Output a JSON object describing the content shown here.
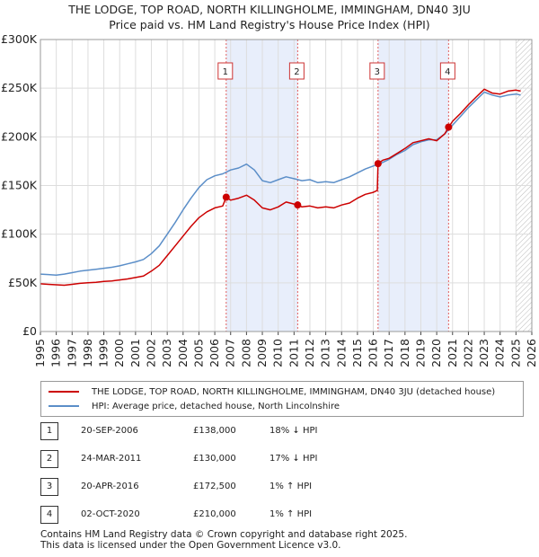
{
  "title_line1": "THE LODGE, TOP ROAD, NORTH KILLINGHOLME, IMMINGHAM, DN40 3JU",
  "title_line2": "Price paid vs. HM Land Registry's House Price Index (HPI)",
  "chart_data": {
    "type": "line",
    "x_range": [
      1995,
      2026
    ],
    "y_range": [
      0,
      300000
    ],
    "y_ticks": [
      {
        "value": 0,
        "label": "£0"
      },
      {
        "value": 50000,
        "label": "£50K"
      },
      {
        "value": 100000,
        "label": "£100K"
      },
      {
        "value": 150000,
        "label": "£150K"
      },
      {
        "value": 200000,
        "label": "£200K"
      },
      {
        "value": 250000,
        "label": "£250K"
      },
      {
        "value": 300000,
        "label": "£300K"
      }
    ],
    "x_ticks": [
      "1995",
      "1996",
      "1997",
      "1998",
      "1999",
      "2000",
      "2001",
      "2002",
      "2003",
      "2004",
      "2005",
      "2006",
      "2007",
      "2008",
      "2009",
      "2010",
      "2011",
      "2012",
      "2013",
      "2014",
      "2015",
      "2016",
      "2017",
      "2018",
      "2019",
      "2020",
      "2021",
      "2022",
      "2023",
      "2024",
      "2025",
      "2026"
    ],
    "future_hatch_from": 2025.0,
    "shaded_periods": [
      [
        2006.72,
        2011.23
      ],
      [
        2016.3,
        2020.75
      ]
    ],
    "series": [
      {
        "name": "THE LODGE, TOP ROAD, NORTH KILLINGHOLME, IMMINGHAM, DN40 3JU (detached house)",
        "color": "#cc0000",
        "points": [
          [
            1995.0,
            49000
          ],
          [
            1995.5,
            48500
          ],
          [
            1996.0,
            48000
          ],
          [
            1996.5,
            47500
          ],
          [
            1997.0,
            48500
          ],
          [
            1997.5,
            49500
          ],
          [
            1998.0,
            50000
          ],
          [
            1998.5,
            50500
          ],
          [
            1999.0,
            51500
          ],
          [
            1999.5,
            52000
          ],
          [
            2000.0,
            53000
          ],
          [
            2000.5,
            54000
          ],
          [
            2001.0,
            55500
          ],
          [
            2001.5,
            57000
          ],
          [
            2002.0,
            62000
          ],
          [
            2002.5,
            68000
          ],
          [
            2003.0,
            78000
          ],
          [
            2003.5,
            88000
          ],
          [
            2004.0,
            98000
          ],
          [
            2004.5,
            108000
          ],
          [
            2005.0,
            117000
          ],
          [
            2005.5,
            123000
          ],
          [
            2006.0,
            127000
          ],
          [
            2006.5,
            129000
          ],
          [
            2006.72,
            138000
          ],
          [
            2007.0,
            135000
          ],
          [
            2007.5,
            137000
          ],
          [
            2008.0,
            140000
          ],
          [
            2008.5,
            135000
          ],
          [
            2009.0,
            127000
          ],
          [
            2009.5,
            125000
          ],
          [
            2010.0,
            128000
          ],
          [
            2010.5,
            133000
          ],
          [
            2011.0,
            131000
          ],
          [
            2011.23,
            130000
          ],
          [
            2011.5,
            128000
          ],
          [
            2012.0,
            129000
          ],
          [
            2012.5,
            127000
          ],
          [
            2013.0,
            128000
          ],
          [
            2013.5,
            127000
          ],
          [
            2014.0,
            130000
          ],
          [
            2014.5,
            132000
          ],
          [
            2015.0,
            137000
          ],
          [
            2015.5,
            141000
          ],
          [
            2016.0,
            143000
          ],
          [
            2016.25,
            145000
          ],
          [
            2016.3,
            172500
          ],
          [
            2016.6,
            176000
          ],
          [
            2017.0,
            178000
          ],
          [
            2017.5,
            183000
          ],
          [
            2018.0,
            188000
          ],
          [
            2018.5,
            194000
          ],
          [
            2019.0,
            196000
          ],
          [
            2019.5,
            198000
          ],
          [
            2020.0,
            196000
          ],
          [
            2020.5,
            203000
          ],
          [
            2020.75,
            210000
          ],
          [
            2021.0,
            216000
          ],
          [
            2021.5,
            224000
          ],
          [
            2022.0,
            233000
          ],
          [
            2022.5,
            241000
          ],
          [
            2023.0,
            249000
          ],
          [
            2023.5,
            245000
          ],
          [
            2024.0,
            244000
          ],
          [
            2024.5,
            247000
          ],
          [
            2025.0,
            248000
          ],
          [
            2025.3,
            247000
          ]
        ]
      },
      {
        "name": "HPI: Average price, detached house, North Lincolnshire",
        "color": "#5b8ec8",
        "points": [
          [
            1995.0,
            59000
          ],
          [
            1995.5,
            58500
          ],
          [
            1996.0,
            58000
          ],
          [
            1996.5,
            59000
          ],
          [
            1997.0,
            60500
          ],
          [
            1997.5,
            62000
          ],
          [
            1998.0,
            63000
          ],
          [
            1998.5,
            64000
          ],
          [
            1999.0,
            65000
          ],
          [
            1999.5,
            66000
          ],
          [
            2000.0,
            67500
          ],
          [
            2000.5,
            69500
          ],
          [
            2001.0,
            71500
          ],
          [
            2001.5,
            74000
          ],
          [
            2002.0,
            80000
          ],
          [
            2002.5,
            88000
          ],
          [
            2003.0,
            100000
          ],
          [
            2003.5,
            112000
          ],
          [
            2004.0,
            125000
          ],
          [
            2004.5,
            137000
          ],
          [
            2005.0,
            148000
          ],
          [
            2005.5,
            156000
          ],
          [
            2006.0,
            160000
          ],
          [
            2006.5,
            162000
          ],
          [
            2007.0,
            166000
          ],
          [
            2007.5,
            168000
          ],
          [
            2008.0,
            172000
          ],
          [
            2008.5,
            166000
          ],
          [
            2009.0,
            155000
          ],
          [
            2009.5,
            153000
          ],
          [
            2010.0,
            156000
          ],
          [
            2010.5,
            159000
          ],
          [
            2011.0,
            157000
          ],
          [
            2011.5,
            155000
          ],
          [
            2012.0,
            156000
          ],
          [
            2012.5,
            153000
          ],
          [
            2013.0,
            154000
          ],
          [
            2013.5,
            153000
          ],
          [
            2014.0,
            156000
          ],
          [
            2014.5,
            159000
          ],
          [
            2015.0,
            163000
          ],
          [
            2015.5,
            167000
          ],
          [
            2016.0,
            170000
          ],
          [
            2016.5,
            173000
          ],
          [
            2017.0,
            177000
          ],
          [
            2017.5,
            182000
          ],
          [
            2018.0,
            186000
          ],
          [
            2018.5,
            192000
          ],
          [
            2019.0,
            195000
          ],
          [
            2019.5,
            197000
          ],
          [
            2020.0,
            197000
          ],
          [
            2020.5,
            203000
          ],
          [
            2021.0,
            212000
          ],
          [
            2021.5,
            221000
          ],
          [
            2022.0,
            230000
          ],
          [
            2022.5,
            238000
          ],
          [
            2023.0,
            246000
          ],
          [
            2023.5,
            243000
          ],
          [
            2024.0,
            241000
          ],
          [
            2024.5,
            243000
          ],
          [
            2025.0,
            244000
          ],
          [
            2025.3,
            243000
          ]
        ]
      }
    ],
    "sales": [
      {
        "num": "1",
        "x": 2006.72,
        "price": 138000
      },
      {
        "num": "2",
        "x": 2011.23,
        "price": 130000
      },
      {
        "num": "3",
        "x": 2016.3,
        "price": 172500
      },
      {
        "num": "4",
        "x": 2020.75,
        "price": 210000
      }
    ]
  },
  "legend": {
    "items": [
      {
        "label": "THE LODGE, TOP ROAD, NORTH KILLINGHOLME, IMMINGHAM, DN40 3JU (detached house)",
        "color": "#cc0000"
      },
      {
        "label": "HPI: Average price, detached house, North Lincolnshire",
        "color": "#5b8ec8"
      }
    ]
  },
  "sales_table": [
    {
      "num": "1",
      "date": "20-SEP-2006",
      "price": "£138,000",
      "hpi": "18% ↓ HPI"
    },
    {
      "num": "2",
      "date": "24-MAR-2011",
      "price": "£130,000",
      "hpi": "17% ↓ HPI"
    },
    {
      "num": "3",
      "date": "20-APR-2016",
      "price": "£172,500",
      "hpi": "1% ↑ HPI"
    },
    {
      "num": "4",
      "date": "02-OCT-2020",
      "price": "£210,000",
      "hpi": "1% ↑ HPI"
    }
  ],
  "footer_line1": "Contains HM Land Registry data © Crown copyright and database right 2025.",
  "footer_line2": "This data is licensed under the Open Government Licence v3.0."
}
